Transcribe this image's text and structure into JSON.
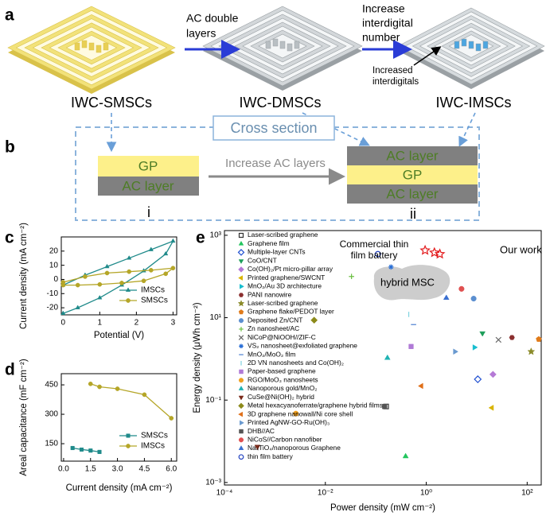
{
  "figure": {
    "panel_a": {
      "letter": "a",
      "devices": [
        "IWC-SMSCs",
        "IWC-DMSCs",
        "IWC-IMSCs"
      ],
      "arrow1": [
        "AC double",
        "layers"
      ],
      "arrow2": [
        "Increase",
        "interdigital",
        "number"
      ],
      "callout": [
        "Increased",
        "interdigitals"
      ]
    },
    "panel_b": {
      "letter": "b",
      "title": "Cross section",
      "left_layers": [
        "GP",
        "AC layer"
      ],
      "left_label": "i",
      "arrow": "Increase AC layers",
      "right_layers": [
        "AC layer",
        "GP",
        "AC layer"
      ],
      "right_label": "ii"
    }
  },
  "chart_data": [
    {
      "type": "line",
      "letter": "c",
      "xlabel": "Potential (V)",
      "ylabel": "Current density (mA cm⁻²)",
      "xlim": [
        -0.05,
        3.1
      ],
      "ylim": [
        -25,
        30
      ],
      "xticks": [
        0,
        1,
        2,
        3
      ],
      "yticks": [
        -20,
        -10,
        0,
        10,
        20
      ],
      "series": [
        {
          "name": "IMSCs",
          "color": "#1f8a8a",
          "marker": "triangle",
          "x": [
            0,
            0.6,
            1.2,
            1.8,
            2.4,
            3,
            2.8,
            2.2,
            1.6,
            1,
            0.4,
            0
          ],
          "values": [
            -4,
            3,
            9,
            15,
            21,
            27,
            18,
            6,
            -4,
            -13,
            -20,
            -24
          ]
        },
        {
          "name": "SMSCs",
          "color": "#b5a628",
          "marker": "circle",
          "x": [
            0,
            0.6,
            1.2,
            1.8,
            2.4,
            3,
            2.8,
            2.2,
            1.6,
            1,
            0.4,
            0
          ],
          "values": [
            -2,
            2,
            4.5,
            5.5,
            6.5,
            8,
            4,
            -1,
            -2.5,
            -3.5,
            -4,
            -4
          ]
        }
      ]
    },
    {
      "type": "line",
      "letter": "d",
      "xlabel": "Current density (mA cm⁻²)",
      "ylabel": "Areal capacitance (mF cm⁻²)",
      "xlim": [
        -0.13,
        6.3
      ],
      "ylim": [
        61,
        507
      ],
      "xticks": [
        {
          "value": 0,
          "label": "0.0"
        },
        1.5,
        {
          "value": 3,
          "label": "3.0"
        },
        4.5,
        {
          "value": 6,
          "label": "6.0"
        }
      ],
      "yticks": [
        150,
        300,
        450
      ],
      "series": [
        {
          "name": "SMSCs",
          "color": "#1f8a8a",
          "marker": "square",
          "x": [
            0.5,
            1,
            1.5,
            2
          ],
          "values": [
            128,
            120,
            115,
            108
          ]
        },
        {
          "name": "IMSCs",
          "color": "#b5a628",
          "marker": "circle",
          "x": [
            1.5,
            2,
            3,
            4.5,
            6
          ],
          "values": [
            455,
            440,
            430,
            400,
            280
          ]
        }
      ]
    },
    {
      "type": "scatter",
      "letter": "e",
      "xlabel": "Power density (mW cm⁻²)",
      "ylabel": "Energy density (μWh cm⁻²)",
      "xscale": "log",
      "yscale": "log",
      "xlim": [
        0.0001,
        190
      ],
      "ylim": [
        0.00087,
        1300
      ],
      "xticks": [
        {
          "value": 0.0001,
          "label": "10⁻⁴"
        },
        {
          "value": 0.01,
          "label": "10⁻²"
        },
        {
          "value": 1,
          "label": "10⁰"
        },
        {
          "value": 100,
          "label": "10²"
        }
      ],
      "yticks": [
        {
          "value": 0.001,
          "label": "10⁻³"
        },
        {
          "value": 0.1,
          "label": "10⁻¹"
        },
        {
          "value": 10,
          "label": "10¹"
        },
        {
          "value": 1000,
          "label": "10³"
        }
      ],
      "series": [
        {
          "name": "Laser-scribed graphene",
          "color": "#333333",
          "marker": "half-square",
          "x": [
            0.16
          ],
          "values": [
            0.07
          ]
        },
        {
          "name": "Graphene film",
          "color": "#22c55e",
          "marker": "triangle",
          "x": [
            0.39
          ],
          "values": [
            0.0043
          ]
        },
        {
          "name": "Multiple-layer CNTs",
          "color": "#1f4fd1",
          "marker": "diamond-open",
          "x": [
            10.5
          ],
          "values": [
            0.32
          ]
        },
        {
          "name": "CoO/CNT",
          "color": "#1e9e5a",
          "marker": "tri-down",
          "x": [
            13
          ],
          "values": [
            4.2
          ]
        },
        {
          "name": "Co(OH)₂/Pt micro-pillar array",
          "color": "#b57ad6",
          "marker": "diamond",
          "x": [
            21
          ],
          "values": [
            0.42
          ]
        },
        {
          "name": "Printed graphene/SWCNT",
          "color": "#d9b400",
          "marker": "tri-left",
          "x": [
            20
          ],
          "values": [
            0.065
          ]
        },
        {
          "name": "MnO₂/Au 3D architecture",
          "color": "#17becf",
          "marker": "tri-right",
          "x": [
            9
          ],
          "values": [
            1.9
          ]
        },
        {
          "name": "PANI nanowire",
          "color": "#8b2f2f",
          "marker": "hexagon",
          "x": [
            50
          ],
          "values": [
            3.3
          ]
        },
        {
          "name": "Laser-scribed graphene",
          "color": "#8b8b2a",
          "marker": "star",
          "x": [
            120
          ],
          "values": [
            1.5
          ]
        },
        {
          "name": "Graphene flake/PEDOT layer",
          "color": "#e07b1a",
          "marker": "pentagon",
          "x": [
            170
          ],
          "values": [
            3
          ]
        },
        {
          "name": "Deposited Zn/CNT",
          "color": "#5b8fd0",
          "marker": "circle",
          "x": [
            8.7
          ],
          "values": [
            29
          ]
        },
        {
          "name": "Zn nanosheet/AC",
          "color": "#6abf40",
          "marker": "plus",
          "x": [
            0.033
          ],
          "values": [
            100
          ]
        },
        {
          "name": "NiCoP@NiOOH//ZIF-C",
          "color": "#666666",
          "marker": "x",
          "x": [
            27
          ],
          "values": [
            2.9
          ]
        },
        {
          "name": "VS₂ nanosheet@exfoliated graphene",
          "color": "#2a6fd6",
          "marker": "asterisk",
          "x": [
            0.2
          ],
          "values": [
            170
          ]
        },
        {
          "name": "MnO₂/MoO₂ film",
          "color": "#4a7fd0",
          "marker": "hline",
          "x": [
            0.56
          ],
          "values": [
            6.8
          ]
        },
        {
          "name": "2D VN nanosheets and Co(OH)₂",
          "color": "#7fd3e0",
          "marker": "vline",
          "x": [
            0.45
          ],
          "values": [
            12
          ]
        },
        {
          "name": "Paper-based graphene",
          "color": "#b07ad6",
          "marker": "square",
          "x": [
            0.5
          ],
          "values": [
            2
          ]
        },
        {
          "name": "RGO/MoO₃ nanosheets",
          "color": "#f0a020",
          "marker": "circle",
          "x": [
            0.0026
          ],
          "values": [
            0.047
          ]
        },
        {
          "name": "Nanoporous gold/MnO₂",
          "color": "#1fb3b3",
          "marker": "triangle",
          "x": [
            0.17
          ],
          "values": [
            1.05
          ]
        },
        {
          "name": "CuSe@Ni(OH)₂ hybrid",
          "color": "#7a2a1a",
          "marker": "tri-down",
          "x": [
            0.00045
          ],
          "values": [
            0.0074
          ]
        },
        {
          "name": "Metal hexacyanoferrate/graphene hybrid films",
          "color": "#8c8a1a",
          "marker": "diamond",
          "x": [
            0.006
          ],
          "values": [
            8.7
          ]
        },
        {
          "name": "3D graphene nanowall/Ni core shell",
          "color": "#e0701a",
          "marker": "tri-left",
          "x": [
            0.8
          ],
          "values": [
            0.22
          ]
        },
        {
          "name": "Printed AgNW-GO-Ru(OH)₃",
          "color": "#6a9ad0",
          "marker": "tri-right",
          "x": [
            3.7
          ],
          "values": [
            1.5
          ]
        },
        {
          "name": "DHB//AC",
          "color": "#555555",
          "marker": "square",
          "x": [
            0.15
          ],
          "values": [
            0.07
          ]
        },
        {
          "name": "NiCoS//Carbon nanofiber",
          "color": "#e05050",
          "marker": "circle",
          "x": [
            5
          ],
          "values": [
            50
          ]
        },
        {
          "name": "Na₄TiO₄/nanoporous Graphene",
          "color": "#3a6fd0",
          "marker": "triangle",
          "x": [
            2.5
          ],
          "values": [
            30
          ]
        },
        {
          "name": "thin film battery",
          "color": "#2040c0",
          "marker": "half-circle",
          "x": [
            0.11
          ],
          "values": [
            350
          ]
        }
      ],
      "our_work": {
        "label": "Our work",
        "color": "#e31a1c",
        "x": [
          0.95,
          1.45,
          1.86
        ],
        "values": [
          430,
          380,
          350
        ]
      },
      "annotations": {
        "commercial": [
          "Commercial thin",
          "film battery"
        ],
        "hybrid": "hybrid MSC"
      }
    }
  ]
}
